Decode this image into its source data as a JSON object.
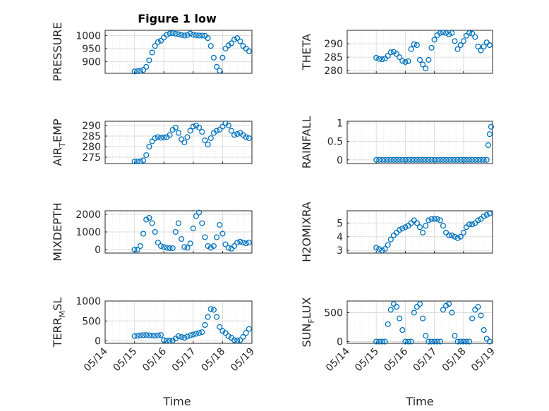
{
  "figure": {
    "title": "Figure 1 low",
    "series_color": "#0072BD",
    "xlabel": "Time",
    "x_ticks": [
      "05/14",
      "05/15",
      "05/16",
      "05/17",
      "05/18",
      "05/19"
    ]
  },
  "chart_data": [
    {
      "type": "scatter",
      "name_main": "PRESSURE",
      "name_sub": "",
      "ylim": [
        855,
        1020
      ],
      "yticks": [
        900,
        950,
        1000
      ],
      "grid": true,
      "x": [
        1.0,
        1.1,
        1.2,
        1.3,
        1.4,
        1.5,
        1.6,
        1.7,
        1.8,
        1.9,
        2.0,
        2.1,
        2.2,
        2.3,
        2.4,
        2.5,
        2.6,
        2.7,
        2.8,
        2.9,
        3.0,
        3.1,
        3.2,
        3.3,
        3.4,
        3.5,
        3.6,
        3.7,
        3.8,
        3.9,
        4.0,
        4.1,
        4.2,
        4.3,
        4.4,
        4.5,
        4.6,
        4.7,
        4.8,
        4.9
      ],
      "y": [
        862,
        863,
        865,
        868,
        880,
        905,
        935,
        960,
        975,
        980,
        992,
        1003,
        1008,
        1009,
        1007,
        1005,
        1002,
        1000,
        1002,
        1008,
        1003,
        1001,
        1000,
        1000,
        999,
        990,
        960,
        915,
        880,
        865,
        915,
        950,
        962,
        970,
        985,
        990,
        978,
        960,
        950,
        940
      ]
    },
    {
      "type": "scatter",
      "name_main": "THETA",
      "name_sub": "",
      "ylim": [
        279,
        295
      ],
      "yticks": [
        280,
        285,
        290
      ],
      "grid": true,
      "x": [
        1.0,
        1.1,
        1.2,
        1.3,
        1.4,
        1.5,
        1.6,
        1.7,
        1.8,
        1.9,
        2.0,
        2.1,
        2.2,
        2.3,
        2.4,
        2.5,
        2.6,
        2.7,
        2.8,
        2.9,
        3.0,
        3.1,
        3.2,
        3.3,
        3.4,
        3.5,
        3.6,
        3.7,
        3.8,
        3.9,
        4.0,
        4.1,
        4.2,
        4.3,
        4.4,
        4.5,
        4.6,
        4.7,
        4.8,
        4.9
      ],
      "y": [
        284.8,
        284.4,
        284.2,
        284.5,
        285.5,
        286.8,
        287.0,
        286.2,
        285.0,
        283.6,
        283.2,
        283.5,
        288.0,
        289.8,
        289.5,
        284.0,
        282.3,
        280.8,
        284.0,
        288.5,
        291.5,
        293.2,
        294.0,
        294.2,
        294.0,
        293.5,
        294.0,
        291.0,
        288.0,
        289.5,
        291.0,
        293.0,
        294.0,
        293.8,
        292.5,
        289.0,
        287.5,
        289.0,
        290.5,
        289.5
      ]
    },
    {
      "type": "scatter",
      "name_main": "AIR",
      "name_sub": "T",
      "name_tail": "EMP",
      "ylim": [
        272,
        292
      ],
      "yticks": [
        275,
        280,
        285,
        290
      ],
      "grid": true,
      "x": [
        1.0,
        1.1,
        1.2,
        1.3,
        1.4,
        1.5,
        1.6,
        1.7,
        1.8,
        1.9,
        2.0,
        2.1,
        2.2,
        2.3,
        2.4,
        2.5,
        2.6,
        2.7,
        2.8,
        2.9,
        3.0,
        3.1,
        3.2,
        3.3,
        3.4,
        3.5,
        3.6,
        3.7,
        3.8,
        3.9,
        4.0,
        4.1,
        4.2,
        4.3,
        4.4,
        4.5,
        4.6,
        4.7,
        4.8,
        4.9
      ],
      "y": [
        273,
        273,
        273,
        273.5,
        276,
        280,
        282.5,
        284,
        284.5,
        284.2,
        284.3,
        284.5,
        285.5,
        288,
        289,
        286.5,
        283.5,
        282,
        284.5,
        287.5,
        289.5,
        290,
        289,
        287,
        283,
        281,
        284,
        286.5,
        287.5,
        288,
        289.5,
        291,
        290,
        287.5,
        285.5,
        286,
        286.5,
        285.5,
        284.5,
        284
      ]
    },
    {
      "type": "scatter",
      "name_main": "RAINFALL",
      "name_sub": "",
      "ylim": [
        -0.1,
        1.05
      ],
      "yticks": [
        0,
        0.5,
        1
      ],
      "grid": true,
      "x": [
        1.0,
        1.1,
        1.2,
        1.3,
        1.4,
        1.5,
        1.6,
        1.7,
        1.8,
        1.9,
        2.0,
        2.1,
        2.2,
        2.3,
        2.4,
        2.5,
        2.6,
        2.7,
        2.8,
        2.9,
        3.0,
        3.1,
        3.2,
        3.3,
        3.4,
        3.5,
        3.6,
        3.7,
        3.8,
        3.9,
        4.0,
        4.1,
        4.2,
        4.3,
        4.4,
        4.5,
        4.6,
        4.7,
        4.8,
        4.85,
        4.9,
        4.95
      ],
      "y": [
        0,
        0,
        0,
        0,
        0,
        0,
        0,
        0,
        0,
        0,
        0,
        0,
        0,
        0,
        0,
        0,
        0,
        0,
        0,
        0,
        0,
        0,
        0,
        0,
        0,
        0,
        0,
        0,
        0,
        0,
        0,
        0,
        0,
        0,
        0,
        0,
        0,
        0,
        0,
        0.4,
        0.7,
        0.9
      ]
    },
    {
      "type": "scatter",
      "name_main": "MIXDEPTH",
      "name_sub": "",
      "ylim": [
        -200,
        2200
      ],
      "yticks": [
        0,
        1000,
        2000
      ],
      "grid": true,
      "x": [
        1.0,
        1.1,
        1.2,
        1.3,
        1.4,
        1.5,
        1.6,
        1.7,
        1.8,
        1.9,
        2.0,
        2.1,
        2.2,
        2.3,
        2.4,
        2.5,
        2.6,
        2.7,
        2.8,
        2.9,
        3.0,
        3.1,
        3.2,
        3.3,
        3.4,
        3.5,
        3.6,
        3.7,
        3.8,
        3.9,
        4.0,
        4.1,
        4.2,
        4.3,
        4.4,
        4.5,
        4.6,
        4.7,
        4.8,
        4.9
      ],
      "y": [
        0,
        0,
        200,
        900,
        1700,
        1800,
        1500,
        1000,
        400,
        200,
        150,
        100,
        80,
        80,
        1000,
        1500,
        600,
        150,
        100,
        350,
        1200,
        1900,
        2100,
        1500,
        700,
        200,
        100,
        200,
        700,
        1400,
        900,
        300,
        100,
        50,
        200,
        400,
        450,
        400,
        350,
        400
      ]
    },
    {
      "type": "scatter",
      "name_main": "H2OMIXRA",
      "name_sub": "",
      "ylim": [
        2.8,
        5.9
      ],
      "yticks": [
        3,
        4,
        5
      ],
      "grid": true,
      "x": [
        1.0,
        1.1,
        1.2,
        1.3,
        1.4,
        1.5,
        1.6,
        1.7,
        1.8,
        1.9,
        2.0,
        2.1,
        2.2,
        2.3,
        2.4,
        2.5,
        2.6,
        2.7,
        2.8,
        2.9,
        3.0,
        3.1,
        3.2,
        3.3,
        3.4,
        3.5,
        3.6,
        3.7,
        3.8,
        3.9,
        4.0,
        4.1,
        4.2,
        4.3,
        4.4,
        4.5,
        4.6,
        4.7,
        4.8,
        4.9
      ],
      "y": [
        3.2,
        3.1,
        3.0,
        3.1,
        3.4,
        3.8,
        4.1,
        4.3,
        4.5,
        4.6,
        4.7,
        4.8,
        5.0,
        5.2,
        5.0,
        4.7,
        4.3,
        4.8,
        5.2,
        5.3,
        5.3,
        5.3,
        5.2,
        4.8,
        4.3,
        4.1,
        4.1,
        4.0,
        3.9,
        4.0,
        4.3,
        4.7,
        4.9,
        4.9,
        5.0,
        5.2,
        5.3,
        5.5,
        5.6,
        5.7
      ]
    },
    {
      "type": "scatter",
      "name_main": "TERR",
      "name_sub": "M",
      "name_tail": "SL",
      "ylim": [
        -60,
        1000
      ],
      "yticks": [
        0,
        500,
        1000
      ],
      "grid": true,
      "x": [
        1.0,
        1.1,
        1.2,
        1.3,
        1.4,
        1.5,
        1.6,
        1.7,
        1.8,
        1.9,
        2.0,
        2.1,
        2.2,
        2.3,
        2.4,
        2.5,
        2.6,
        2.7,
        2.8,
        2.9,
        3.0,
        3.1,
        3.2,
        3.3,
        3.4,
        3.5,
        3.6,
        3.7,
        3.8,
        3.9,
        4.0,
        4.1,
        4.2,
        4.3,
        4.4,
        4.5,
        4.6,
        4.7,
        4.8,
        4.9
      ],
      "y": [
        120,
        130,
        140,
        145,
        150,
        140,
        135,
        130,
        140,
        150,
        20,
        10,
        5,
        10,
        60,
        120,
        100,
        80,
        110,
        140,
        160,
        180,
        200,
        220,
        400,
        600,
        800,
        780,
        600,
        350,
        250,
        200,
        120,
        80,
        20,
        10,
        20,
        100,
        200,
        300
      ]
    },
    {
      "type": "scatter",
      "name_main": "SUN",
      "name_sub": "F",
      "name_tail": "LUX",
      "ylim": [
        -30,
        700
      ],
      "yticks": [
        0,
        500
      ],
      "grid": true,
      "x": [
        1.0,
        1.1,
        1.2,
        1.3,
        1.4,
        1.5,
        1.6,
        1.7,
        1.8,
        1.9,
        2.0,
        2.1,
        2.2,
        2.3,
        2.4,
        2.5,
        2.6,
        2.7,
        2.8,
        2.9,
        3.0,
        3.1,
        3.2,
        3.3,
        3.4,
        3.5,
        3.6,
        3.7,
        3.8,
        3.9,
        4.0,
        4.1,
        4.2,
        4.3,
        4.4,
        4.5,
        4.6,
        4.7,
        4.8,
        4.9
      ],
      "y": [
        0,
        0,
        0,
        0,
        300,
        550,
        650,
        600,
        400,
        200,
        0,
        0,
        0,
        500,
        600,
        650,
        400,
        100,
        0,
        0,
        0,
        0,
        0,
        550,
        620,
        650,
        500,
        100,
        0,
        0,
        0,
        0,
        0,
        400,
        550,
        600,
        450,
        200,
        50,
        0
      ]
    }
  ]
}
